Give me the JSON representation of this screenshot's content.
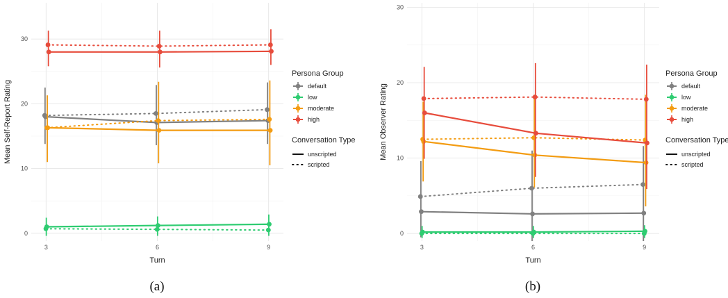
{
  "colors": {
    "default": "#808080",
    "low": "#2ecc71",
    "moderate": "#f39c12",
    "high": "#e74c3c"
  },
  "legend": {
    "group_title": "Persona Group",
    "groups": [
      "default",
      "low",
      "moderate",
      "high"
    ],
    "type_title": "Conversation Type",
    "types": [
      "unscripted",
      "scripted"
    ]
  },
  "chart_data": [
    {
      "type": "line",
      "caption": "(a)",
      "xlabel": "Turn",
      "ylabel": "Mean Self-Report Rating",
      "x": [
        3,
        6,
        9
      ],
      "xlim": [
        2.6,
        9.4
      ],
      "ylim": [
        -1.2,
        35.6
      ],
      "yticks": [
        0,
        10,
        20,
        30
      ],
      "series": [
        {
          "name": "default",
          "type": "unscripted",
          "values": [
            18.0,
            17.1,
            17.4
          ],
          "lower": [
            13.8,
            13.6,
            13.8
          ],
          "upper": [
            22.5,
            22.9,
            23.3
          ]
        },
        {
          "name": "default",
          "type": "scripted",
          "values": [
            18.2,
            18.5,
            19.1
          ],
          "lower": [
            13.8,
            13.6,
            13.8
          ],
          "upper": [
            22.5,
            22.9,
            23.3
          ]
        },
        {
          "name": "low",
          "type": "unscripted",
          "values": [
            1.0,
            1.2,
            1.4
          ],
          "lower": [
            -0.4,
            -0.4,
            -0.4
          ],
          "upper": [
            2.4,
            2.6,
            2.9
          ]
        },
        {
          "name": "low",
          "type": "scripted",
          "values": [
            0.7,
            0.6,
            0.5
          ],
          "lower": [
            -0.4,
            -0.4,
            -0.4
          ],
          "upper": [
            2.4,
            2.6,
            2.9
          ]
        },
        {
          "name": "moderate",
          "type": "unscripted",
          "values": [
            16.3,
            15.9,
            15.9
          ],
          "lower": [
            11.0,
            10.8,
            10.5
          ],
          "upper": [
            21.3,
            23.4,
            23.6
          ]
        },
        {
          "name": "moderate",
          "type": "scripted",
          "values": [
            16.3,
            17.4,
            17.6
          ],
          "lower": [
            11.0,
            10.8,
            10.5
          ],
          "upper": [
            21.3,
            23.4,
            23.6
          ]
        },
        {
          "name": "high",
          "type": "unscripted",
          "values": [
            28.0,
            28.0,
            28.1
          ],
          "lower": [
            25.8,
            25.6,
            26.0
          ],
          "upper": [
            31.3,
            31.3,
            31.5
          ]
        },
        {
          "name": "high",
          "type": "scripted",
          "values": [
            29.1,
            28.9,
            29.1
          ],
          "lower": [
            25.8,
            25.6,
            26.0
          ],
          "upper": [
            31.3,
            31.3,
            31.5
          ]
        }
      ]
    },
    {
      "type": "line",
      "caption": "(b)",
      "xlabel": "Turn",
      "ylabel": "Mean Observer Rating",
      "x": [
        3,
        6,
        9
      ],
      "xlim": [
        2.6,
        9.4
      ],
      "ylim": [
        -1.0,
        30.6
      ],
      "yticks": [
        0,
        10,
        20,
        30
      ],
      "series": [
        {
          "name": "default",
          "type": "unscripted",
          "values": [
            2.9,
            2.6,
            2.7
          ],
          "lower": [
            -0.5,
            -1.0,
            -1.0
          ],
          "upper": [
            9.6,
            11.0,
            11.6
          ]
        },
        {
          "name": "default",
          "type": "scripted",
          "values": [
            4.9,
            6.0,
            6.5
          ],
          "lower": [
            -0.5,
            -1.0,
            -1.0
          ],
          "upper": [
            9.6,
            11.0,
            11.6
          ]
        },
        {
          "name": "low",
          "type": "unscripted",
          "values": [
            0.2,
            0.2,
            0.3
          ],
          "lower": [
            -0.6,
            -0.6,
            -0.6
          ],
          "upper": [
            1.0,
            1.0,
            1.1
          ]
        },
        {
          "name": "low",
          "type": "scripted",
          "values": [
            0.0,
            0.0,
            0.0
          ],
          "lower": [
            -0.6,
            -0.6,
            -0.6
          ],
          "upper": [
            1.0,
            1.0,
            1.1
          ]
        },
        {
          "name": "moderate",
          "type": "unscripted",
          "values": [
            12.2,
            10.4,
            9.4
          ],
          "lower": [
            6.9,
            6.1,
            3.6
          ],
          "upper": [
            17.5,
            18.4,
            18.4
          ]
        },
        {
          "name": "moderate",
          "type": "scripted",
          "values": [
            12.5,
            12.7,
            12.4
          ],
          "lower": [
            6.9,
            6.1,
            3.6
          ],
          "upper": [
            17.5,
            18.4,
            18.4
          ]
        },
        {
          "name": "high",
          "type": "unscripted",
          "values": [
            16.0,
            13.3,
            12.0
          ],
          "lower": [
            9.9,
            7.5,
            5.9
          ],
          "upper": [
            22.1,
            22.6,
            22.4
          ]
        },
        {
          "name": "high",
          "type": "scripted",
          "values": [
            17.9,
            18.1,
            17.8
          ],
          "lower": [
            9.9,
            7.5,
            5.9
          ],
          "upper": [
            22.1,
            22.6,
            22.4
          ]
        }
      ]
    }
  ]
}
